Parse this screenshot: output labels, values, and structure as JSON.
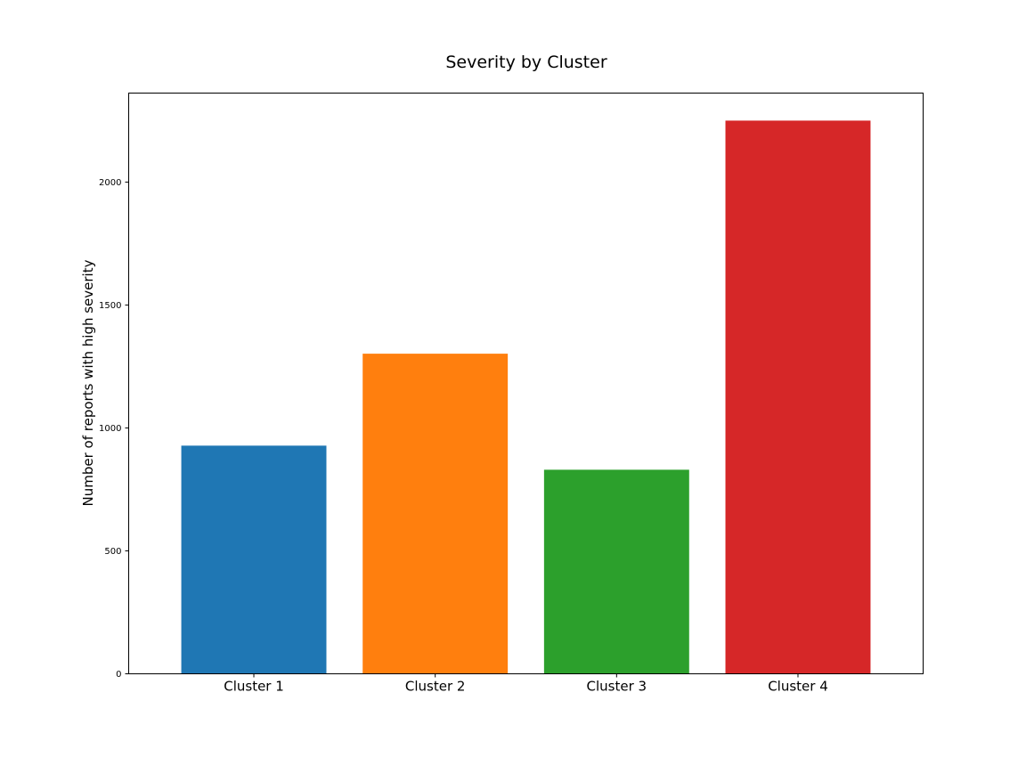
{
  "chart_data": {
    "type": "bar",
    "title": "Severity by Cluster",
    "xlabel": "",
    "ylabel": "Number of reports with high severity",
    "categories": [
      "Cluster 1",
      "Cluster 2",
      "Cluster 3",
      "Cluster 4"
    ],
    "values": [
      928,
      1302,
      830,
      2250
    ],
    "colors": [
      "#1f77b4",
      "#ff7f0e",
      "#2ca02c",
      "#d62728"
    ],
    "ylim": [
      0,
      2362
    ],
    "yticks": [
      0,
      500,
      1000,
      1500,
      2000
    ],
    "ytick_labels": [
      "0",
      "500",
      "1000",
      "1500",
      "2000"
    ],
    "grid": false,
    "legend": "none"
  }
}
